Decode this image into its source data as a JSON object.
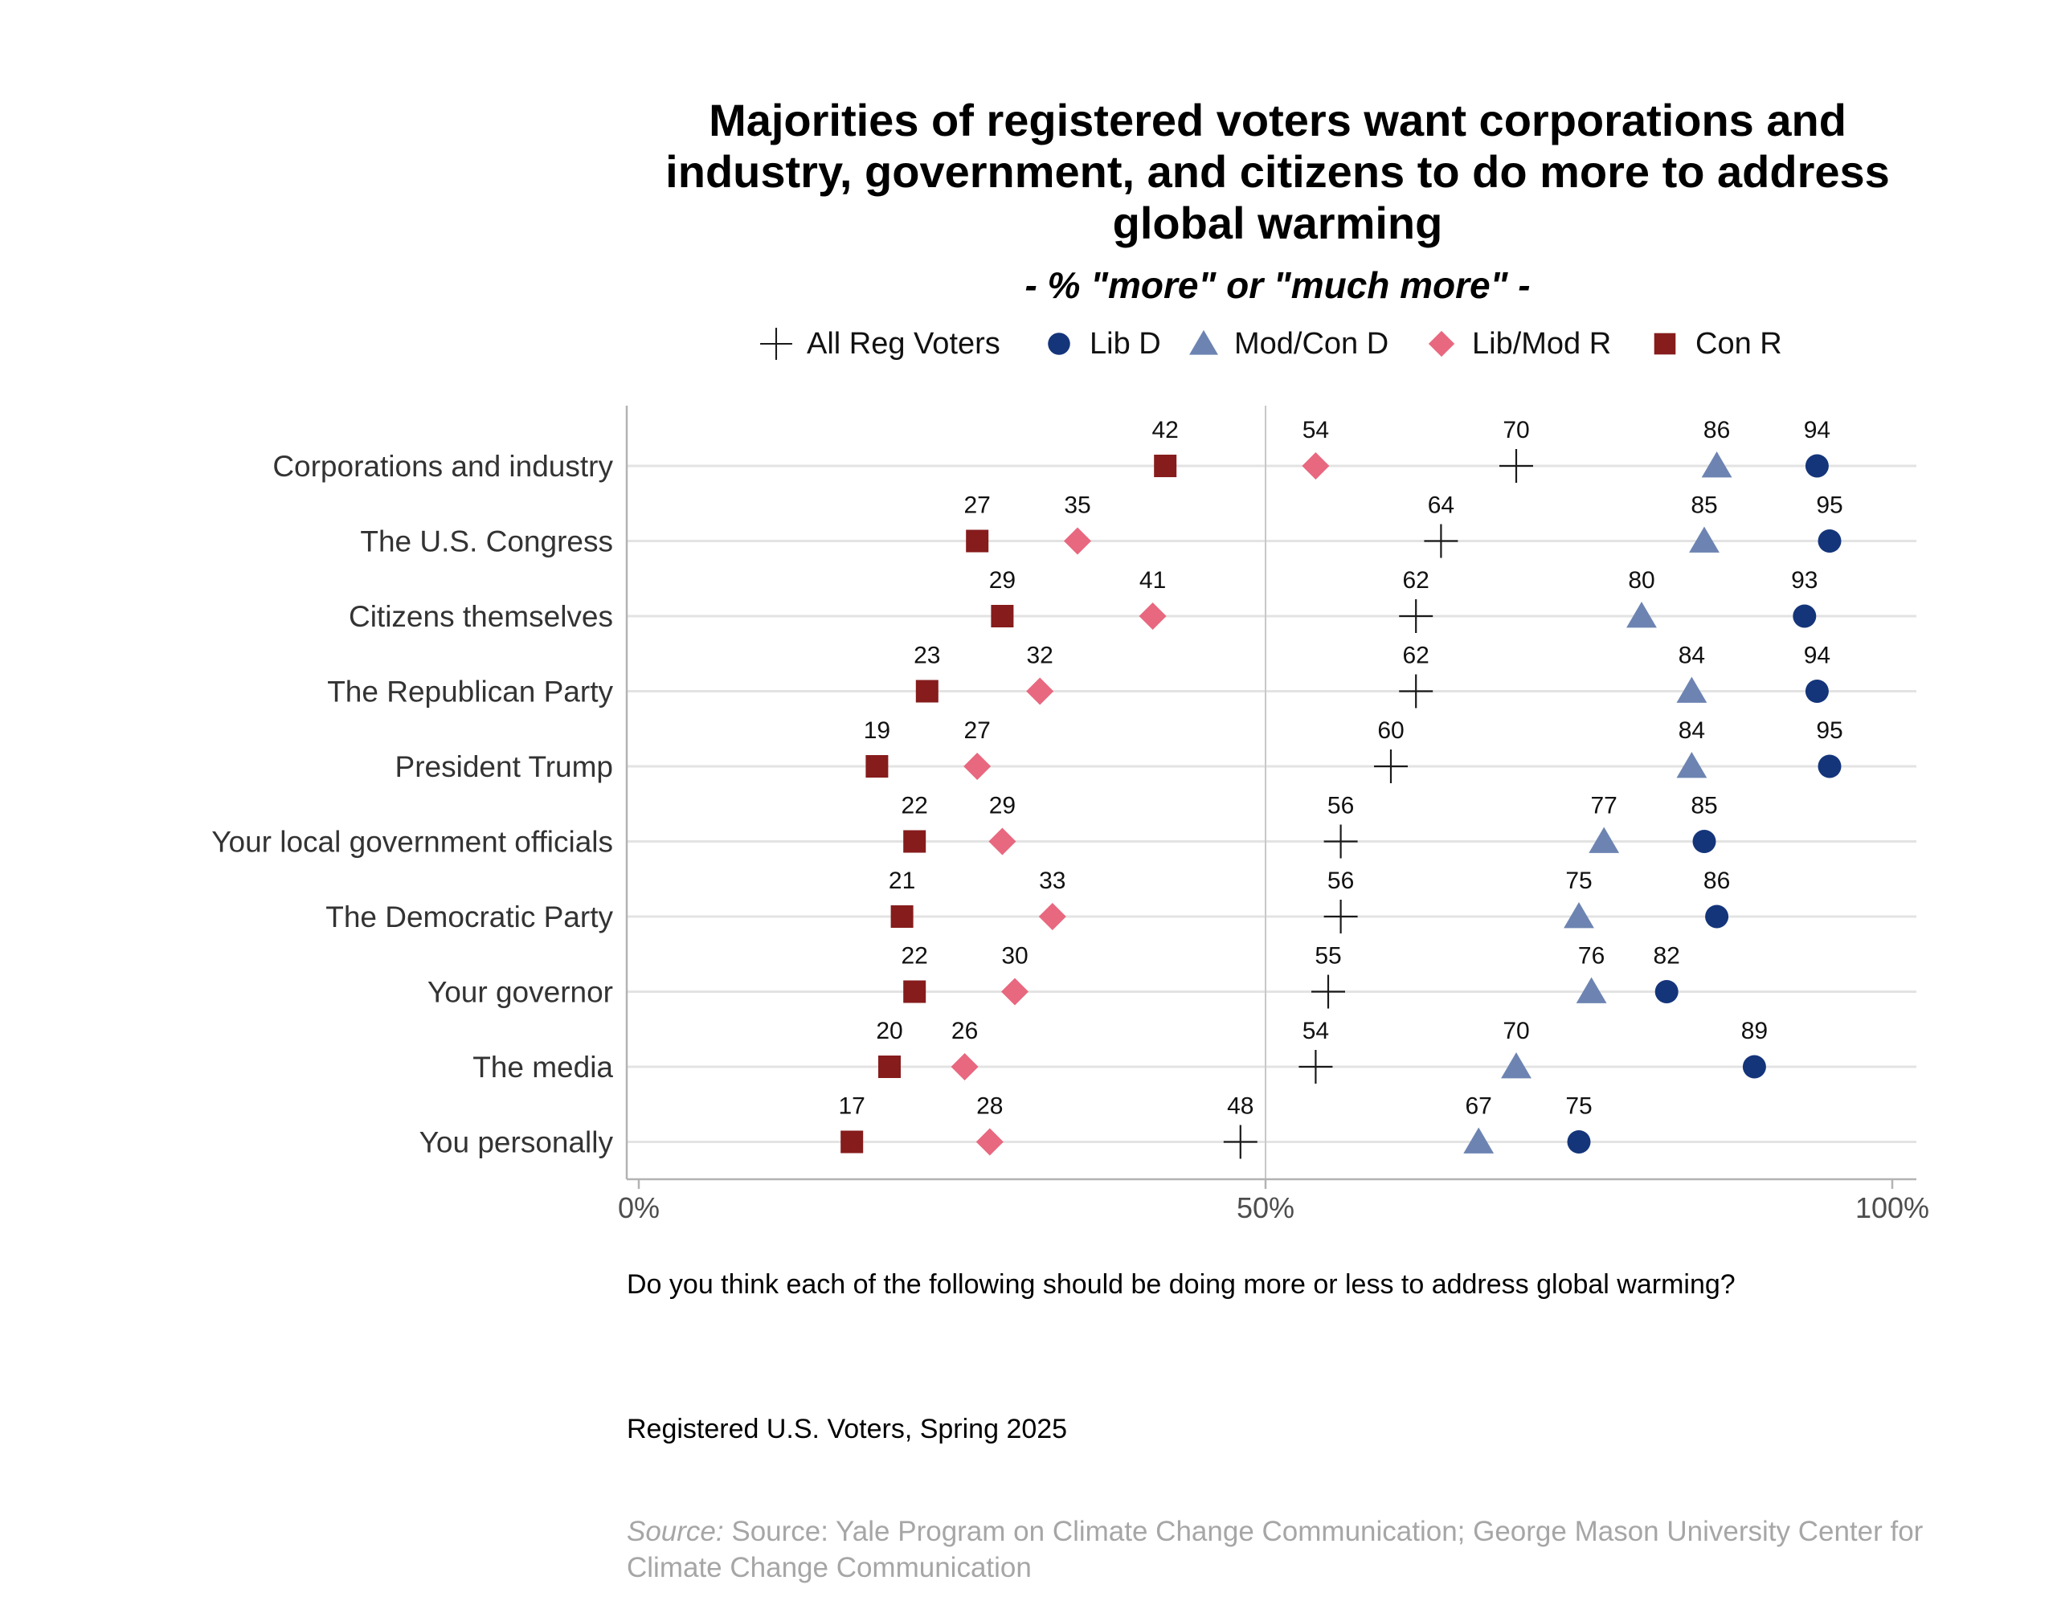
{
  "chart_data": {
    "type": "scatter",
    "title": "Majorities of registered voters want corporations and industry, government, and citizens to do more to address global warming",
    "title_lines": [
      "Majorities of registered voters want corporations and",
      "industry, government, and citizens to do more to address",
      "global warming"
    ],
    "subtitle": "- % \"more\" or \"much more\" -",
    "xlim": [
      0,
      100
    ],
    "x_ticks": [
      0,
      50,
      100
    ],
    "x_tick_labels": [
      "0%",
      "50%",
      "100%"
    ],
    "grid": "horizontal",
    "legend_position": "top",
    "categories": [
      "Corporations and industry",
      "The U.S. Congress",
      "Citizens themselves",
      "The Republican Party",
      "President Trump",
      "Your local government officials",
      "The Democratic Party",
      "Your governor",
      "The media",
      "You personally"
    ],
    "series": [
      {
        "name": "All Reg Voters",
        "marker": "plus",
        "color": "#1a1a1a",
        "values": [
          70,
          64,
          62,
          62,
          60,
          56,
          56,
          55,
          54,
          48
        ]
      },
      {
        "name": "Lib D",
        "marker": "circle",
        "color": "#14357a",
        "values": [
          94,
          95,
          93,
          94,
          95,
          85,
          86,
          82,
          89,
          75
        ]
      },
      {
        "name": "Mod/Con D",
        "marker": "triangle",
        "color": "#6d84b2",
        "values": [
          86,
          85,
          80,
          84,
          84,
          77,
          75,
          76,
          70,
          67
        ]
      },
      {
        "name": "Lib/Mod R",
        "marker": "diamond",
        "color": "#e8687f",
        "values": [
          54,
          35,
          41,
          32,
          27,
          29,
          33,
          30,
          26,
          28
        ]
      },
      {
        "name": "Con R",
        "marker": "square",
        "color": "#861c1c",
        "values": [
          42,
          27,
          29,
          23,
          19,
          22,
          21,
          22,
          20,
          17
        ]
      }
    ]
  },
  "notes": {
    "question": "Do you think each of the following should be doing more or less to address global warming?",
    "sample": "Registered U.S. Voters, Spring 2025",
    "source_label": "Source:",
    "source_text": " Source: Yale Program on Climate Change Communication; George Mason University Center for Climate Change Communication"
  }
}
